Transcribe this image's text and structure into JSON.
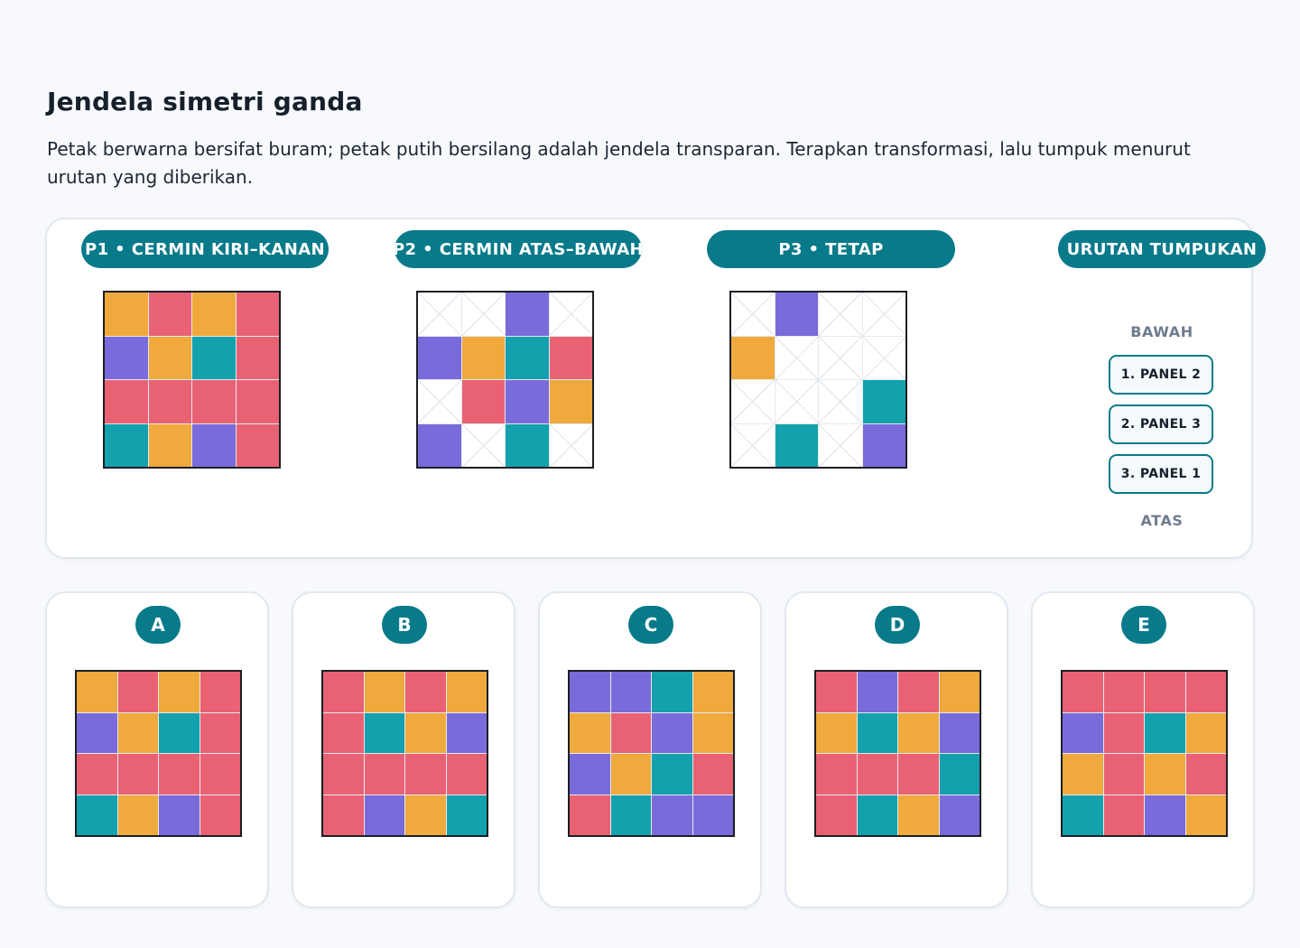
{
  "page": {
    "title": "Jendela simetri ganda",
    "description": "Petak berwarna bersifat buram; petak putih bersilang adalah jendela transparan. Terapkan transformasi, lalu tumpuk menurut urutan yang diberikan."
  },
  "colors": {
    "O": "#efa93c",
    "R": "#e96273",
    "P": "#7a6bda",
    "T": "#12a1ad",
    "W": "#ffffff",
    "accent": "#087a8a"
  },
  "panels": [
    {
      "label": "P1 • CERMIN KIRI–KANAN",
      "cells": [
        [
          "O",
          "R",
          "O",
          "R"
        ],
        [
          "P",
          "O",
          "T",
          "R"
        ],
        [
          "R",
          "R",
          "R",
          "R"
        ],
        [
          "T",
          "O",
          "P",
          "R"
        ]
      ]
    },
    {
      "label": "P2 • CERMIN ATAS–BAWAH",
      "cells": [
        [
          "W",
          "W",
          "P",
          "W"
        ],
        [
          "P",
          "O",
          "T",
          "R"
        ],
        [
          "W",
          "R",
          "P",
          "O"
        ],
        [
          "P",
          "W",
          "T",
          "W"
        ]
      ]
    },
    {
      "label": "P3 • TETAP",
      "cells": [
        [
          "W",
          "P",
          "W",
          "W"
        ],
        [
          "O",
          "W",
          "W",
          "W"
        ],
        [
          "W",
          "W",
          "W",
          "T"
        ],
        [
          "W",
          "T",
          "W",
          "P"
        ]
      ]
    }
  ],
  "stack": {
    "title": "URUTAN TUMPUKAN",
    "bottom_label": "BAWAH",
    "top_label": "ATAS",
    "items": [
      "1. PANEL 2",
      "2. PANEL 3",
      "3. PANEL 1"
    ]
  },
  "options": [
    {
      "label": "A",
      "cells": [
        [
          "O",
          "R",
          "O",
          "R"
        ],
        [
          "P",
          "O",
          "T",
          "R"
        ],
        [
          "R",
          "R",
          "R",
          "R"
        ],
        [
          "T",
          "O",
          "P",
          "R"
        ]
      ]
    },
    {
      "label": "B",
      "cells": [
        [
          "R",
          "O",
          "R",
          "O"
        ],
        [
          "R",
          "T",
          "O",
          "P"
        ],
        [
          "R",
          "R",
          "R",
          "R"
        ],
        [
          "R",
          "P",
          "O",
          "T"
        ]
      ]
    },
    {
      "label": "C",
      "cells": [
        [
          "P",
          "P",
          "T",
          "O"
        ],
        [
          "O",
          "R",
          "P",
          "O"
        ],
        [
          "P",
          "O",
          "T",
          "R"
        ],
        [
          "R",
          "T",
          "P",
          "P"
        ]
      ]
    },
    {
      "label": "D",
      "cells": [
        [
          "R",
          "P",
          "R",
          "O"
        ],
        [
          "O",
          "T",
          "O",
          "P"
        ],
        [
          "R",
          "R",
          "R",
          "T"
        ],
        [
          "R",
          "T",
          "O",
          "P"
        ]
      ]
    },
    {
      "label": "E",
      "cells": [
        [
          "R",
          "R",
          "R",
          "R"
        ],
        [
          "P",
          "R",
          "T",
          "O"
        ],
        [
          "O",
          "R",
          "O",
          "R"
        ],
        [
          "T",
          "R",
          "P",
          "O"
        ]
      ]
    }
  ]
}
